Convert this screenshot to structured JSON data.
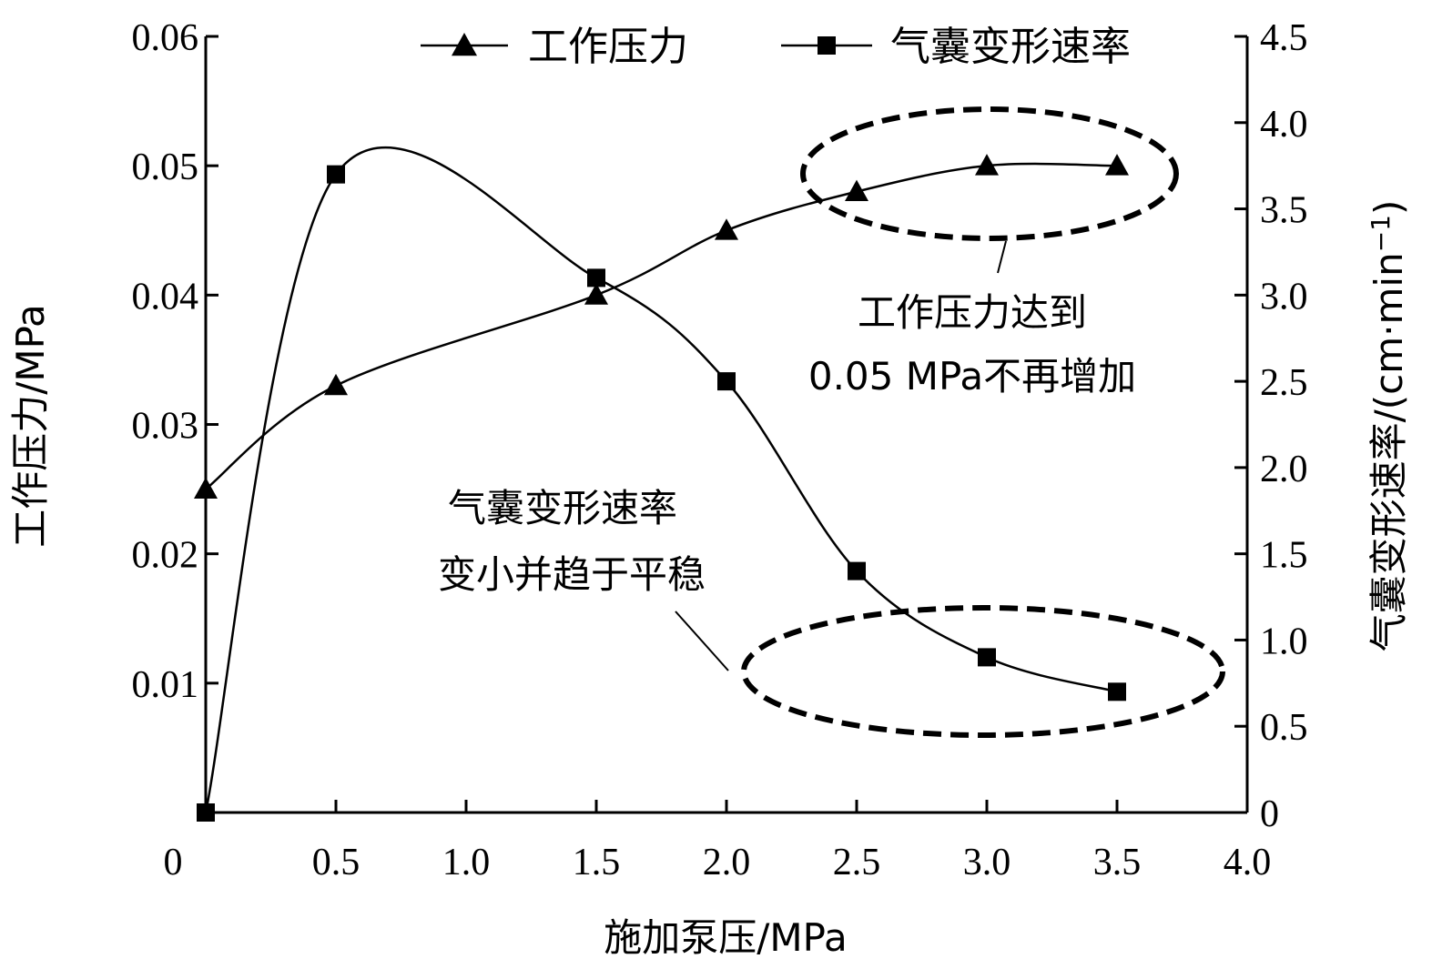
{
  "chart_data": {
    "type": "line",
    "xlabel": "施加泵压/MPa",
    "ylabel_left": "工作压力/MPa",
    "ylabel_right": "气囊变形速率/(cm·min",
    "ylabel_right_sup": "−1",
    "ylabel_right_close": ")",
    "xlim": [
      0,
      4.0
    ],
    "ylim_left": [
      0,
      0.06
    ],
    "ylim_right": [
      0,
      4.5
    ],
    "x_ticks": [
      "0",
      "0.5",
      "1.0",
      "1.5",
      "2.0",
      "2.5",
      "3.0",
      "3.5",
      "4.0"
    ],
    "y_left_ticks": [
      "0.01",
      "0.02",
      "0.03",
      "0.04",
      "0.05",
      "0.06"
    ],
    "y_right_ticks": [
      "0",
      "0.5",
      "1.0",
      "1.5",
      "2.0",
      "2.5",
      "3.0",
      "3.5",
      "4.0",
      "4.5"
    ],
    "grid": false,
    "legend_position": "top-right",
    "series": [
      {
        "name": "工作压力",
        "axis": "left",
        "marker": "triangle",
        "x": [
          0,
          0.5,
          1.5,
          2.0,
          2.5,
          3.0,
          3.5
        ],
        "values": [
          0.025,
          0.033,
          0.04,
          0.045,
          0.048,
          0.05,
          0.05
        ]
      },
      {
        "name": "气囊变形速率",
        "axis": "right",
        "marker": "square",
        "x": [
          0,
          0.5,
          1.5,
          2.0,
          2.5,
          3.0,
          3.5
        ],
        "values": [
          0,
          3.7,
          3.1,
          2.5,
          1.4,
          0.9,
          0.7
        ]
      }
    ],
    "annotations": [
      {
        "lines": [
          "工作压力达到",
          "0.05 MPa不再增加"
        ]
      },
      {
        "lines": [
          "气囊变形速率",
          "变小并趋于平稳"
        ]
      }
    ]
  }
}
